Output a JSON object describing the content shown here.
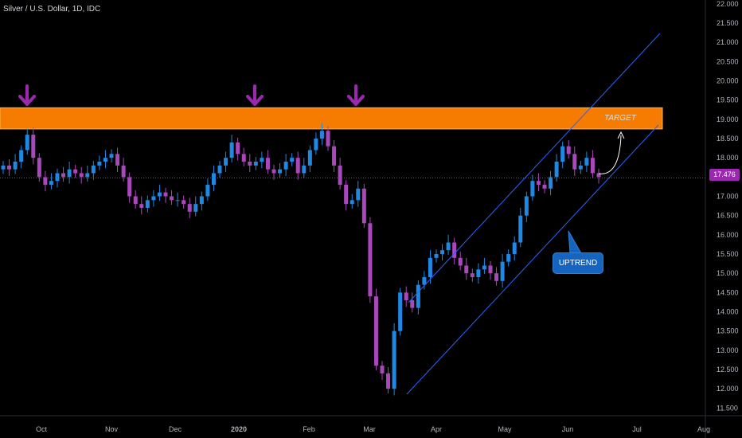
{
  "chart_data": {
    "type": "candlestick",
    "title": "Silver / U.S. Dollar, 1D, IDC",
    "ylim": [
      11.3,
      22.1
    ],
    "y_ticks": [
      "22.000",
      "21.500",
      "21.000",
      "20.500",
      "20.000",
      "19.500",
      "19.000",
      "18.500",
      "18.000",
      "17.500",
      "17.000",
      "16.500",
      "16.000",
      "15.500",
      "15.000",
      "14.500",
      "14.000",
      "13.500",
      "13.000",
      "12.500",
      "12.000",
      "11.500"
    ],
    "x_ticks": [
      "Oct",
      "Nov",
      "Dec",
      "2020",
      "Feb",
      "Mar",
      "Apr",
      "May",
      "Jun",
      "Jul",
      "Aug"
    ],
    "last_price": "17.476",
    "resistance_zone": [
      18.75,
      19.3
    ],
    "series_close_approx": [
      17.8,
      17.7,
      17.9,
      18.2,
      18.6,
      18.0,
      17.5,
      17.3,
      17.4,
      17.6,
      17.5,
      17.7,
      17.6,
      17.5,
      17.6,
      17.8,
      17.9,
      18.0,
      18.1,
      17.8,
      17.5,
      17.0,
      16.8,
      16.7,
      16.9,
      17.0,
      17.1,
      17.0,
      16.9,
      16.9,
      16.8,
      16.6,
      16.8,
      17.0,
      17.3,
      17.6,
      17.8,
      18.0,
      18.4,
      18.1,
      17.9,
      17.8,
      17.9,
      18.0,
      17.7,
      17.6,
      17.7,
      17.9,
      18.0,
      17.6,
      17.8,
      18.2,
      18.5,
      18.7,
      18.3,
      17.8,
      17.3,
      16.8,
      16.9,
      17.2,
      16.3,
      14.4,
      12.6,
      12.4,
      12.0,
      13.5,
      14.5,
      14.3,
      14.1,
      14.7,
      14.9,
      15.4,
      15.5,
      15.6,
      15.8,
      15.4,
      15.2,
      15.0,
      14.9,
      15.1,
      15.2,
      15.0,
      14.8,
      15.3,
      15.5,
      15.8,
      16.5,
      17.0,
      17.4,
      17.3,
      17.2,
      17.5,
      17.9,
      18.3,
      18.1,
      17.7,
      17.8,
      18.0,
      17.6,
      17.5
    ],
    "annotations": {
      "target_label": "TARGET",
      "trend_label": "UPTREND"
    },
    "colors": {
      "up": "#1e88e5",
      "down": "#ab47bc",
      "zone": "#f57c00",
      "arrows": "#9c27b0",
      "channel": "#2962ff",
      "price_line": "#9c27b0"
    }
  }
}
